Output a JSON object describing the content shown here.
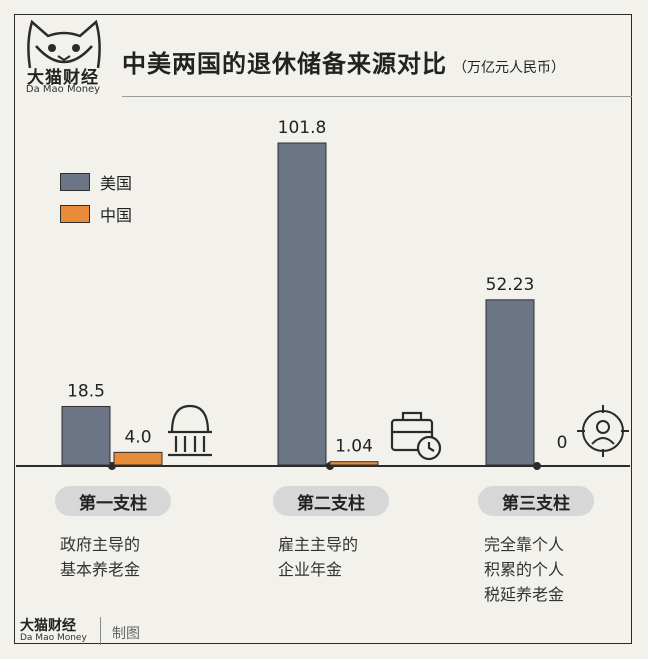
{
  "brand": {
    "name_cn": "大猫财经",
    "name_en": "Da Mao Money",
    "footer_credit": "制图"
  },
  "colors": {
    "us": "#6c7585",
    "cn": "#e98c3a",
    "background": "#f2f1ec",
    "pill": "#d7d7d7"
  },
  "chart_data": {
    "type": "bar",
    "title": "中美两国的退休储备来源对比",
    "unit": "（万亿元人民币）",
    "categories": [
      "第一支柱",
      "第二支柱",
      "第三支柱"
    ],
    "category_descriptions": [
      [
        "政府主导的",
        "基本养老金"
      ],
      [
        "雇主主导的",
        "企业年金"
      ],
      [
        "完全靠个人",
        "积累的个人",
        "税延养老金"
      ]
    ],
    "category_icons": [
      "government-building-icon",
      "briefcase-clock-icon",
      "person-target-icon"
    ],
    "series": [
      {
        "name": "美国",
        "values": [
          18.5,
          101.8,
          52.23
        ],
        "labels": [
          "18.5",
          "101.8",
          "52.23"
        ]
      },
      {
        "name": "中国",
        "values": [
          4.0,
          1.04,
          0
        ],
        "labels": [
          "4.0",
          "1.04",
          "0"
        ]
      }
    ],
    "ylim": [
      0,
      101.8
    ],
    "grid": false,
    "legend_position": "top-left"
  }
}
